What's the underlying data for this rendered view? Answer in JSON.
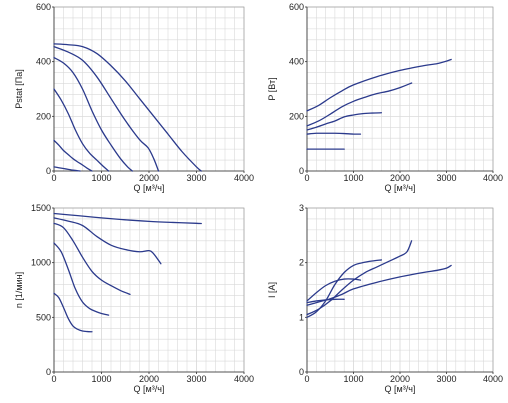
{
  "colors": {
    "line": "#2b3a8c",
    "grid": "#d9d9d9"
  },
  "chart_data": [
    {
      "type": "line",
      "xlabel": "Q [м³/ч]",
      "ylabel": "Pstat [Па]",
      "xlim": [
        0,
        4000
      ],
      "ylim": [
        0,
        600
      ],
      "xticks": [
        0,
        1000,
        2000,
        3000,
        4000
      ],
      "yticks": [
        0,
        200,
        400,
        600
      ],
      "grid": true,
      "series": [
        {
          "x": [
            0,
            300,
            600,
            900,
            1200,
            1500,
            1800,
            2100,
            2400,
            2700,
            3000,
            3100
          ],
          "y": [
            465,
            462,
            455,
            430,
            385,
            330,
            265,
            200,
            135,
            70,
            15,
            0
          ]
        },
        {
          "x": [
            0,
            300,
            600,
            900,
            1200,
            1500,
            1800,
            1980,
            2100,
            2200
          ],
          "y": [
            455,
            435,
            405,
            345,
            265,
            185,
            115,
            85,
            45,
            0
          ]
        },
        {
          "x": [
            0,
            200,
            400,
            600,
            800,
            1000,
            1200,
            1400,
            1550,
            1650
          ],
          "y": [
            415,
            395,
            360,
            300,
            220,
            150,
            95,
            45,
            15,
            0
          ]
        },
        {
          "x": [
            0,
            150,
            300,
            450,
            600,
            750,
            900,
            1050,
            1150
          ],
          "y": [
            300,
            260,
            210,
            150,
            100,
            65,
            40,
            15,
            0
          ]
        },
        {
          "x": [
            0,
            100,
            200,
            300,
            400,
            500,
            600,
            700,
            800
          ],
          "y": [
            112,
            95,
            75,
            60,
            45,
            33,
            22,
            10,
            0
          ]
        },
        {
          "x": [
            0,
            100,
            200,
            300,
            400,
            500,
            550
          ],
          "y": [
            15,
            12,
            9,
            6,
            3,
            1,
            0
          ]
        }
      ]
    },
    {
      "type": "line",
      "xlabel": "Q [м³/ч]",
      "ylabel": "P [Вт]",
      "xlim": [
        0,
        4000
      ],
      "ylim": [
        0,
        600
      ],
      "xticks": [
        0,
        1000,
        2000,
        3000,
        4000
      ],
      "yticks": [
        0,
        200,
        400,
        600
      ],
      "grid": true,
      "series": [
        {
          "x": [
            0,
            250,
            500,
            750,
            1000,
            1500,
            2000,
            2500,
            2800,
            3000,
            3100
          ],
          "y": [
            220,
            240,
            268,
            293,
            315,
            345,
            368,
            385,
            393,
            402,
            408
          ]
        },
        {
          "x": [
            0,
            250,
            500,
            750,
            1000,
            1250,
            1500,
            1750,
            2000,
            2250
          ],
          "y": [
            165,
            183,
            208,
            235,
            255,
            270,
            283,
            292,
            305,
            322
          ]
        },
        {
          "x": [
            0,
            200,
            400,
            600,
            800,
            1000,
            1200,
            1400,
            1600
          ],
          "y": [
            150,
            160,
            172,
            183,
            198,
            205,
            210,
            212,
            213
          ]
        },
        {
          "x": [
            0,
            200,
            400,
            600,
            800,
            1000,
            1150
          ],
          "y": [
            135,
            138,
            138,
            138,
            137,
            135,
            135
          ]
        },
        {
          "x": [
            0,
            100,
            300,
            500,
            700,
            800
          ],
          "y": [
            80,
            80,
            80,
            80,
            80,
            80
          ]
        }
      ]
    },
    {
      "type": "line",
      "xlabel": "Q [м³/ч]",
      "ylabel": "n [1/мин]",
      "xlim": [
        0,
        4000
      ],
      "ylim": [
        0,
        1500
      ],
      "xticks": [
        0,
        1000,
        2000,
        3000,
        4000
      ],
      "yticks": [
        0,
        500,
        1000,
        1500
      ],
      "grid": true,
      "series": [
        {
          "x": [
            0,
            500,
            1000,
            1500,
            2000,
            2500,
            3000,
            3100
          ],
          "y": [
            1450,
            1430,
            1410,
            1392,
            1378,
            1368,
            1360,
            1358
          ]
        },
        {
          "x": [
            0,
            300,
            600,
            900,
            1200,
            1500,
            1800,
            2000,
            2100,
            2250
          ],
          "y": [
            1410,
            1380,
            1340,
            1240,
            1160,
            1120,
            1100,
            1110,
            1080,
            990
          ]
        },
        {
          "x": [
            0,
            200,
            400,
            600,
            800,
            1000,
            1200,
            1400,
            1600
          ],
          "y": [
            1360,
            1320,
            1200,
            1050,
            920,
            840,
            790,
            745,
            710
          ]
        },
        {
          "x": [
            0,
            150,
            300,
            450,
            600,
            750,
            900,
            1000,
            1150
          ],
          "y": [
            1180,
            1100,
            940,
            760,
            640,
            580,
            550,
            535,
            520
          ]
        },
        {
          "x": [
            0,
            100,
            200,
            300,
            400,
            500,
            600,
            700,
            800
          ],
          "y": [
            720,
            680,
            590,
            490,
            420,
            390,
            375,
            370,
            368
          ]
        }
      ]
    },
    {
      "type": "line",
      "xlabel": "Q [м³/ч]",
      "ylabel": "I [A]",
      "xlim": [
        0,
        4000
      ],
      "ylim": [
        0,
        3
      ],
      "xticks": [
        0,
        1000,
        2000,
        3000,
        4000
      ],
      "yticks": [
        0,
        1,
        2,
        3
      ],
      "grid": true,
      "series": [
        {
          "x": [
            0,
            250,
            500,
            750,
            1000,
            1500,
            2000,
            2500,
            2800,
            3000,
            3100
          ],
          "y": [
            1.22,
            1.28,
            1.34,
            1.42,
            1.52,
            1.64,
            1.74,
            1.82,
            1.86,
            1.9,
            1.95
          ]
        },
        {
          "x": [
            0,
            250,
            500,
            750,
            1000,
            1250,
            1500,
            1750,
            2000,
            2150,
            2250
          ],
          "y": [
            1.05,
            1.15,
            1.3,
            1.5,
            1.68,
            1.82,
            1.92,
            2.02,
            2.12,
            2.2,
            2.4
          ]
        },
        {
          "x": [
            0,
            200,
            400,
            600,
            800,
            1000,
            1200,
            1400,
            1600
          ],
          "y": [
            1.0,
            1.1,
            1.3,
            1.6,
            1.82,
            1.95,
            2.0,
            2.03,
            2.05
          ]
        },
        {
          "x": [
            0,
            200,
            400,
            600,
            800,
            1000,
            1150
          ],
          "y": [
            1.3,
            1.45,
            1.58,
            1.66,
            1.7,
            1.7,
            1.68
          ]
        },
        {
          "x": [
            0,
            200,
            400,
            600,
            800
          ],
          "y": [
            1.27,
            1.3,
            1.32,
            1.33,
            1.33
          ]
        }
      ]
    }
  ]
}
